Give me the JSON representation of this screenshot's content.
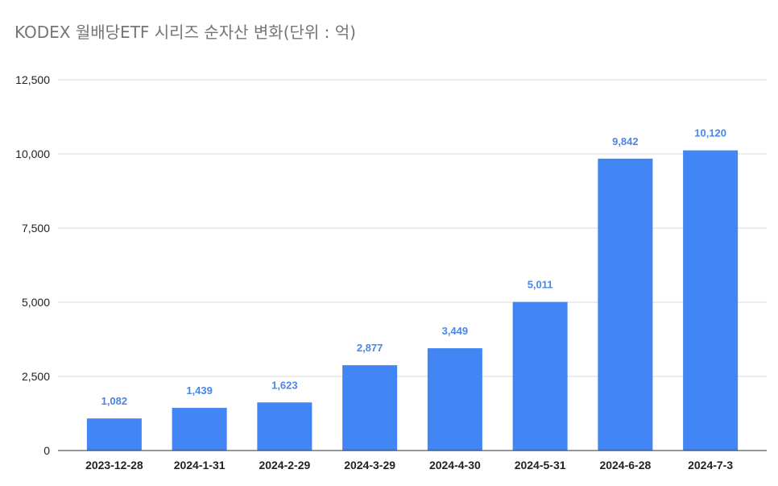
{
  "chart_data": {
    "type": "bar",
    "title": "KODEX 월배당ETF 시리즈 순자산 변화(단위 : 억)",
    "xlabel": "",
    "ylabel": "",
    "categories": [
      "2023-12-28",
      "2024-1-31",
      "2024-2-29",
      "2024-3-29",
      "2024-4-30",
      "2024-5-31",
      "2024-6-28",
      "2024-7-3"
    ],
    "values": [
      1082,
      1439,
      1623,
      2877,
      3449,
      5011,
      9842,
      10120
    ],
    "value_labels": [
      "1,082",
      "1,439",
      "1,623",
      "2,877",
      "3,449",
      "5,011",
      "9,842",
      "10,120"
    ],
    "ylim": [
      0,
      12500
    ],
    "yticks": [
      0,
      2500,
      5000,
      7500,
      10000,
      12500
    ],
    "ytick_labels": [
      "0",
      "2,500",
      "5,000",
      "7,500",
      "10,000",
      "12,500"
    ],
    "grid": true,
    "legend": "none",
    "colors": {
      "bar": "#4285f4",
      "data_label": "#4a86e8",
      "grid": "#d9d9d9",
      "axis": "#333333",
      "title": "#757575"
    }
  }
}
